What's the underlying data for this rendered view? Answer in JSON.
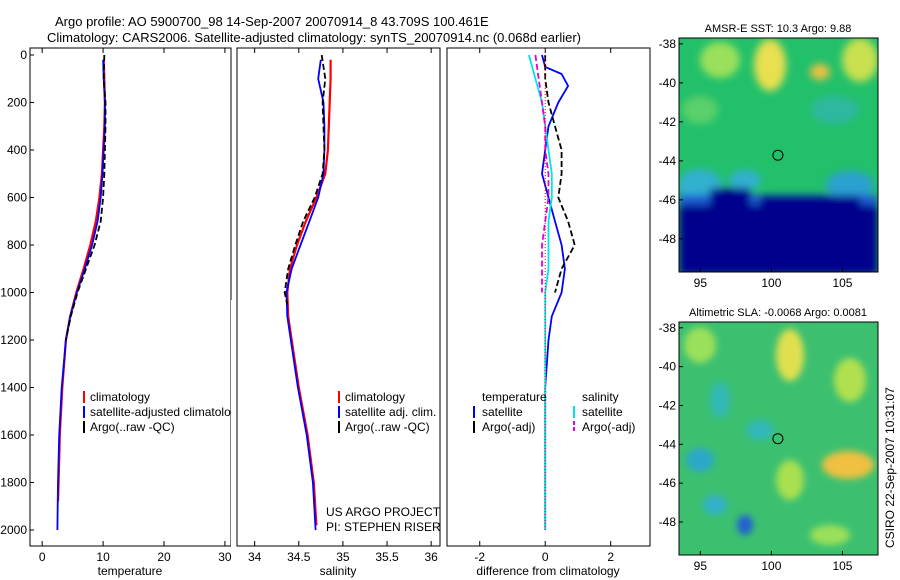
{
  "titles": {
    "line1": "Argo profile: AO 5900700_98 14-Sep-2007 20070914_8 43.709S 100.461E",
    "line2": "Climatology: CARS2006. Satellite-adjusted climatology: synTS_20070914.nc (0.068d earlier)"
  },
  "side_label": "CSIRO 22-Sep-2007 10:31:07",
  "project": {
    "line1": "US ARGO PROJECT",
    "line2": "PI: STEPHEN RISER"
  },
  "colors": {
    "red": "#ff0000",
    "blue": "#0000ff",
    "black": "#000000",
    "cyan": "#00e5e5",
    "magenta": "#e000e0"
  },
  "chart_data": [
    {
      "type": "line",
      "xlabel": "temperature",
      "xlim": [
        -2,
        31
      ],
      "ylim": [
        0,
        2050
      ],
      "y_reversed": true,
      "xticks": [
        "0",
        "10",
        "20",
        "30"
      ],
      "yticks": [
        "0",
        "200",
        "400",
        "600",
        "800",
        "1000",
        "1200",
        "1400",
        "1600",
        "1800",
        "2000"
      ],
      "legend": [
        "climatology",
        "satellite-adjusted climatology",
        "Argo(..raw -QC)"
      ],
      "series": [
        {
          "name": "climatology",
          "color": "red",
          "dash": "solid",
          "x": [
            10.1,
            10.2,
            10.3,
            10.2,
            10.0,
            9.8,
            9.4,
            8.8,
            7.9,
            6.8,
            5.6,
            4.6,
            3.9,
            3.3,
            2.9,
            2.7,
            2.6
          ],
          "y": [
            20,
            100,
            200,
            300,
            400,
            500,
            600,
            700,
            800,
            900,
            1000,
            1100,
            1200,
            1400,
            1600,
            1800,
            1880
          ]
        },
        {
          "name": "satellite-adjusted climatology",
          "color": "blue",
          "dash": "solid",
          "x": [
            10.0,
            10.1,
            10.3,
            10.3,
            10.1,
            9.9,
            9.6,
            9.1,
            8.2,
            7.0,
            5.7,
            4.6,
            3.9,
            3.2,
            2.8,
            2.6,
            2.5
          ],
          "y": [
            20,
            100,
            200,
            300,
            400,
            500,
            600,
            700,
            800,
            900,
            1000,
            1100,
            1200,
            1400,
            1600,
            1800,
            2000
          ]
        },
        {
          "name": "Argo(..raw -QC)",
          "color": "black",
          "dash": "dashed",
          "x": [
            10.2,
            10.1,
            10.4,
            10.4,
            10.3,
            10.2,
            10.0,
            9.6,
            8.6,
            7.2,
            5.8,
            4.7,
            3.9
          ],
          "y": [
            0,
            100,
            200,
            300,
            400,
            500,
            600,
            700,
            800,
            900,
            1000,
            1100,
            1200
          ]
        }
      ]
    },
    {
      "type": "line",
      "xlabel": "salinity",
      "xlim": [
        33.8,
        36.1
      ],
      "ylim": [
        0,
        2050
      ],
      "y_reversed": true,
      "xticks": [
        "34",
        "34.5",
        "35",
        "35.5",
        "36"
      ],
      "legend": [
        "climatology",
        "satellite adj. clim.",
        "Argo(..raw -QC)"
      ],
      "series": [
        {
          "name": "climatology",
          "color": "red",
          "dash": "solid",
          "x": [
            34.86,
            34.86,
            34.85,
            34.84,
            34.83,
            34.8,
            34.7,
            34.58,
            34.48,
            34.4,
            34.37,
            34.38,
            34.42,
            34.5,
            34.6,
            34.67,
            34.7
          ],
          "y": [
            20,
            100,
            200,
            300,
            400,
            500,
            600,
            700,
            800,
            900,
            1000,
            1100,
            1200,
            1400,
            1600,
            1800,
            1980
          ]
        },
        {
          "name": "satellite adj. clim.",
          "color": "blue",
          "dash": "solid",
          "x": [
            34.75,
            34.72,
            34.78,
            34.79,
            34.79,
            34.78,
            34.72,
            34.62,
            34.52,
            34.42,
            34.36,
            34.37,
            34.41,
            34.49,
            34.59,
            34.66,
            34.69
          ],
          "y": [
            20,
            100,
            200,
            300,
            400,
            500,
            600,
            700,
            800,
            900,
            1000,
            1100,
            1200,
            1400,
            1600,
            1800,
            2000
          ]
        },
        {
          "name": "Argo(..raw -QC)",
          "color": "black",
          "dash": "dashed",
          "x": [
            34.76,
            34.8,
            34.77,
            34.78,
            34.79,
            34.77,
            34.68,
            34.55,
            34.46,
            34.38,
            34.34,
            34.37
          ],
          "y": [
            0,
            100,
            200,
            300,
            400,
            500,
            600,
            700,
            800,
            900,
            1000,
            1050
          ]
        }
      ]
    },
    {
      "type": "line",
      "xlabel": "difference from climatology",
      "xlim": [
        -3,
        3.2
      ],
      "ylim": [
        0,
        2050
      ],
      "y_reversed": true,
      "xticks": [
        "-2",
        "0",
        "2"
      ],
      "legend_temperature": {
        "heading": "temperature",
        "items": [
          "satellite",
          "Argo(-adj)"
        ]
      },
      "legend_salinity": {
        "heading": "salinity",
        "items": [
          "satellite",
          "Argo(-adj)"
        ]
      },
      "series": [
        {
          "name": "temperature satellite",
          "color": "blue",
          "dash": "solid",
          "x": [
            -0.1,
            0.0,
            0.5,
            0.7,
            0.4,
            0.1,
            0.0,
            -0.1,
            0.1,
            0.3,
            0.5,
            0.6,
            0.5,
            0.2,
            0.1,
            0.0,
            0.0,
            0.0,
            0.0,
            0.0
          ],
          "y": [
            0,
            50,
            80,
            130,
            200,
            300,
            400,
            500,
            600,
            700,
            800,
            900,
            1000,
            1100,
            1200,
            1400,
            1600,
            1800,
            1900,
            2000
          ]
        },
        {
          "name": "temperature Argo(-adj)",
          "color": "black",
          "dash": "dashed",
          "x": [
            0.0,
            0.0,
            0.1,
            0.3,
            0.5,
            0.5,
            0.4,
            0.7,
            0.9,
            0.5,
            0.3
          ],
          "y": [
            0,
            100,
            200,
            300,
            400,
            500,
            600,
            700,
            800,
            900,
            1000
          ]
        },
        {
          "name": "salinity satellite",
          "color": "cyan",
          "dash": "solid",
          "x": [
            -0.5,
            -0.3,
            -0.1,
            0.0,
            0.1,
            0.2,
            0.2,
            0.1,
            0.1,
            0.1,
            0.0,
            0.0,
            0.0,
            0.0,
            0.0,
            0.0
          ],
          "y": [
            0,
            100,
            200,
            300,
            400,
            500,
            600,
            700,
            800,
            900,
            1000,
            1200,
            1400,
            1600,
            1800,
            2000
          ]
        },
        {
          "name": "salinity Argo(-adj)",
          "color": "magenta",
          "dash": "dashed",
          "x": [
            -0.3,
            -0.2,
            -0.1,
            0.0,
            0.0,
            0.1,
            0.1,
            0.0,
            -0.1,
            -0.1,
            -0.1
          ],
          "y": [
            0,
            100,
            200,
            300,
            400,
            500,
            600,
            700,
            800,
            900,
            1000
          ]
        },
        {
          "name": "zero reference",
          "color": "red",
          "dash": "dotted",
          "x": [
            0,
            0
          ],
          "y": [
            0,
            2000
          ]
        }
      ]
    },
    {
      "type": "heatmap",
      "title": "AMSR-E SST: 10.3 Argo: 9.88",
      "xlim": [
        93.5,
        107.5
      ],
      "ylim": [
        -49.7,
        -37.7
      ],
      "xticks": [
        "95",
        "100",
        "105"
      ],
      "yticks": [
        "-38",
        "-40",
        "-42",
        "-44",
        "-46",
        "-48"
      ],
      "marker": {
        "x": 100.461,
        "y": -43.709
      }
    },
    {
      "type": "heatmap",
      "title": "Altimetric SLA: -0.0068 Argo: 0.0081",
      "xlim": [
        93.5,
        107.5
      ],
      "ylim": [
        -49.7,
        -37.7
      ],
      "xticks": [
        "95",
        "100",
        "105"
      ],
      "yticks": [
        "-38",
        "-40",
        "-42",
        "-44",
        "-46",
        "-48"
      ],
      "marker": {
        "x": 100.461,
        "y": -43.709
      }
    }
  ]
}
